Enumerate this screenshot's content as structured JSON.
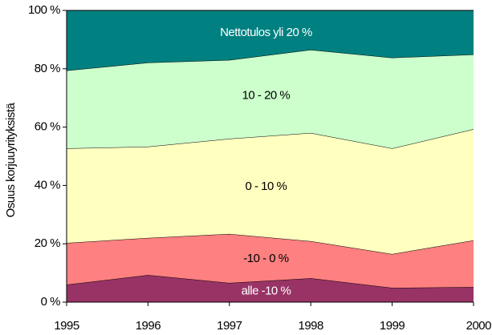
{
  "chart_data": {
    "type": "stacked-area",
    "y_label": "Osuus korjuuyrityksistä",
    "x": [
      1995,
      1996,
      1997,
      1998,
      1999,
      2000
    ],
    "xlim": [
      1995,
      2000
    ],
    "xticks": [
      1995,
      1996,
      1997,
      1998,
      1999,
      2000
    ],
    "ylim": [
      0,
      100
    ],
    "yticks": [
      {
        "value": 0,
        "label": "0 %"
      },
      {
        "value": 20,
        "label": "20 %"
      },
      {
        "value": 40,
        "label": "40 %"
      },
      {
        "value": 60,
        "label": "60 %"
      },
      {
        "value": 80,
        "label": "80 %"
      },
      {
        "value": 100,
        "label": "100 %"
      }
    ],
    "series": [
      {
        "name": "alle -10 %",
        "color": "#993366",
        "label_color": "#ffffff",
        "values": [
          6.0,
          9.3,
          6.6,
          8.2,
          4.9,
          5.2
        ]
      },
      {
        "name": "-10 - 0 %",
        "color": "#ff8080",
        "label_color": "#000000",
        "values": [
          14.3,
          12.7,
          16.8,
          12.7,
          11.6,
          16.0
        ]
      },
      {
        "name": "0 - 10 %",
        "color": "#ffffc0",
        "label_color": "#000000",
        "values": [
          32.4,
          31.3,
          32.6,
          37.1,
          36.2,
          38.1
        ]
      },
      {
        "name": "10 - 20 %",
        "color": "#ccffcc",
        "label_color": "#000000",
        "values": [
          26.7,
          28.8,
          27.0,
          28.5,
          31.1,
          25.6
        ]
      },
      {
        "name": "Nettotulos yli 20 %",
        "color": "#008080",
        "label_color": "#ffffff",
        "values": [
          20.6,
          17.9,
          17.0,
          13.5,
          16.2,
          15.1
        ]
      }
    ]
  }
}
